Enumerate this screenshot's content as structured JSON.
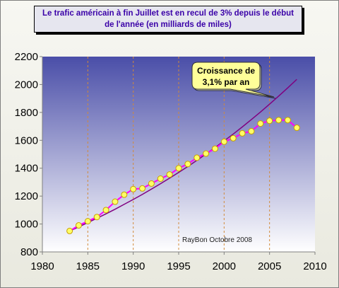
{
  "chart_data": {
    "type": "line",
    "title": "Le trafic américain à fin Juillet est  en recul de 3% depuis le début de l'année (en milliards de miles)",
    "xlabel": "",
    "ylabel": "",
    "xlim": [
      1980,
      2010
    ],
    "ylim": [
      800,
      2200
    ],
    "x_ticks": [
      1980,
      1985,
      1990,
      1995,
      2000,
      2005,
      2010
    ],
    "y_ticks": [
      800,
      1000,
      1200,
      1400,
      1600,
      1800,
      2000,
      2200
    ],
    "vertical_gridlines": [
      1985,
      1990,
      1995,
      2000,
      2005
    ],
    "grid": "vertical dashed",
    "legend": "none",
    "series": [
      {
        "type": "line-markers",
        "x": [
          1983,
          1984,
          1985,
          1986,
          1987,
          1988,
          1989,
          1990,
          1991,
          1992,
          1993,
          1994,
          1995,
          1996,
          1997,
          1998,
          1999,
          2000,
          2001,
          2002,
          2003,
          2004,
          2005,
          2006,
          2007,
          2008
        ],
        "y": [
          950,
          990,
          1020,
          1050,
          1100,
          1160,
          1210,
          1250,
          1255,
          1290,
          1325,
          1355,
          1400,
          1430,
          1475,
          1505,
          1540,
          1590,
          1615,
          1650,
          1665,
          1720,
          1740,
          1745,
          1745,
          1690
        ],
        "color": "#ff00ff",
        "marker_color": "#ffff66"
      },
      {
        "type": "trend",
        "x": [
          1983,
          1984,
          1985,
          1986,
          1987,
          1988,
          1989,
          1990,
          1991,
          1992,
          1993,
          1994,
          1995,
          1996,
          1997,
          1998,
          1999,
          2000,
          2001,
          2002,
          2003,
          2004,
          2005,
          2006,
          2007,
          2008
        ],
        "y": [
          950,
          979,
          1010,
          1041,
          1073,
          1106,
          1141,
          1176,
          1212,
          1250,
          1289,
          1329,
          1370,
          1412,
          1456,
          1501,
          1548,
          1596,
          1645,
          1696,
          1749,
          1803,
          1859,
          1917,
          1976,
          2037
        ],
        "color": "#800080"
      }
    ],
    "annotations": [
      {
        "text_lines": [
          "Croissance de",
          "3,1% par an"
        ]
      },
      {
        "text": "RayBon Octobre 2008"
      }
    ]
  },
  "colors": {
    "plot_top": "#4a4ea8",
    "plot_bottom": "#ffffff",
    "data_line": "#ff00ff",
    "marker_fill": "#ffff66",
    "marker_stroke": "#c8a000",
    "trend_line": "#800080",
    "gridline": "#d28a3a",
    "callout_fill": "#ffff99"
  }
}
